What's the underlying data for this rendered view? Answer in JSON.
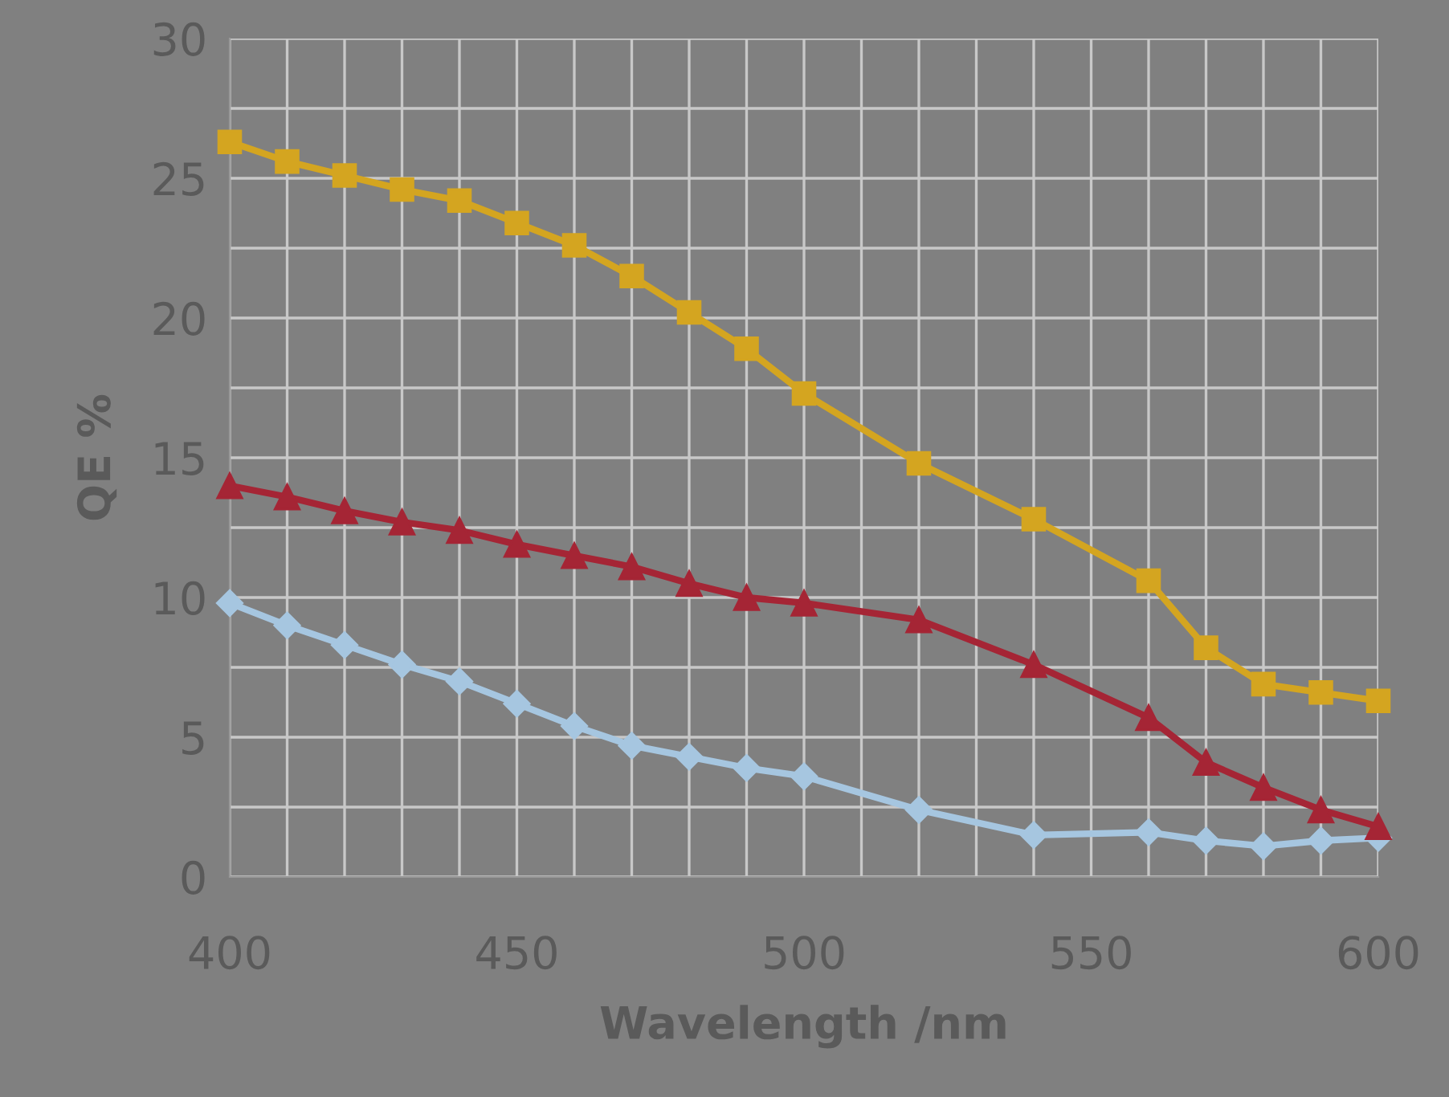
{
  "chart_data": {
    "type": "line",
    "xlabel": "Wavelength /nm",
    "ylabel": "QE %",
    "x": [
      400,
      410,
      420,
      430,
      440,
      450,
      460,
      470,
      480,
      490,
      500,
      520,
      540,
      560,
      570,
      580,
      590,
      600
    ],
    "series": [
      {
        "color": "#d4a520",
        "marker": "square",
        "values": [
          26.3,
          25.6,
          25.1,
          24.6,
          24.2,
          23.4,
          22.6,
          21.5,
          20.2,
          18.9,
          17.3,
          14.8,
          12.8,
          10.6,
          8.2,
          6.9,
          6.6,
          6.3
        ]
      },
      {
        "color": "#a52535",
        "marker": "triangle",
        "values": [
          14.0,
          13.6,
          13.1,
          12.7,
          12.4,
          11.9,
          11.5,
          11.1,
          10.5,
          10.0,
          9.8,
          9.2,
          7.6,
          5.7,
          4.1,
          3.2,
          2.4,
          1.8
        ]
      },
      {
        "color": "#a6c6e0",
        "marker": "diamond",
        "values": [
          9.8,
          9.0,
          8.3,
          7.6,
          7.0,
          6.2,
          5.4,
          4.7,
          4.3,
          3.9,
          3.6,
          2.4,
          1.5,
          1.6,
          1.3,
          1.1,
          1.3,
          1.4
        ]
      }
    ],
    "xlim": [
      400,
      600
    ],
    "xticks": [
      400,
      {
        "value": 410,
        "label": null
      },
      {
        "value": 420,
        "label": null
      },
      {
        "value": 430,
        "label": null
      },
      {
        "value": 440,
        "label": null
      },
      450,
      {
        "value": 460,
        "label": null
      },
      {
        "value": 470,
        "label": null
      },
      {
        "value": 480,
        "label": null
      },
      {
        "value": 490,
        "label": null
      },
      500,
      {
        "value": 510,
        "label": null
      },
      {
        "value": 520,
        "label": null
      },
      {
        "value": 530,
        "label": null
      },
      {
        "value": 540,
        "label": null
      },
      550,
      {
        "value": 560,
        "label": null
      },
      {
        "value": 570,
        "label": null
      },
      {
        "value": 580,
        "label": null
      },
      {
        "value": 590,
        "label": null
      },
      600
    ],
    "ylim": [
      0,
      30
    ],
    "yticks": [
      0,
      {
        "value": 2.5,
        "label": null
      },
      5,
      {
        "value": 7.5,
        "label": null
      },
      10,
      {
        "value": 12.5,
        "label": null
      },
      15,
      {
        "value": 17.5,
        "label": null
      },
      20,
      {
        "value": 22.5,
        "label": null
      },
      25,
      {
        "value": 27.5,
        "label": null
      },
      30
    ],
    "grid": true,
    "legend": false,
    "line_style": "solid"
  }
}
